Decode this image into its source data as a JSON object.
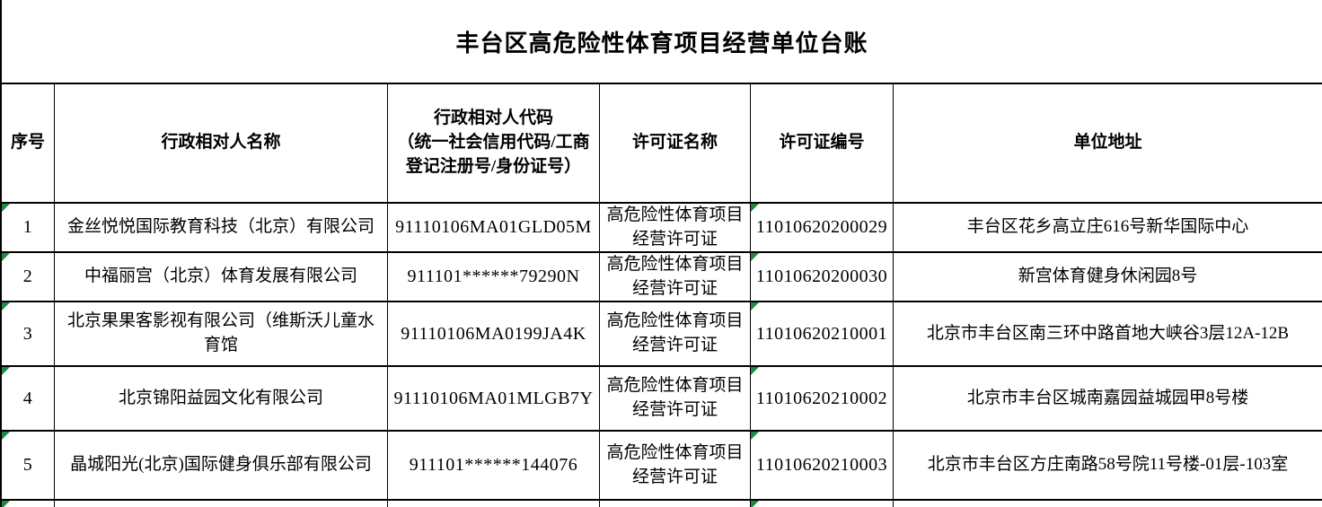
{
  "title": "丰台区高危险性体育项目经营单位台账",
  "colors": {
    "background": "#ffffff",
    "border": "#000000",
    "flag_green": "#1e8a3e",
    "text": "#000000"
  },
  "icons": {
    "cell_flag": "green-corner-triangle (spreadsheet number-stored-as-text indicator)"
  },
  "table": {
    "headers": {
      "index": "序号",
      "name": "行政相对人名称",
      "code": "行政相对人代码\n（统一社会信用代码/工商登记注册号/身份证号）",
      "license_name": "许可证名称",
      "license_no": "许可证编号",
      "address": "单位地址"
    },
    "rows": [
      {
        "index": "1",
        "name": "金丝悦悦国际教育科技（北京）有限公司",
        "code": "91110106MA01GLD05M",
        "license_name": "高危险性体育项目\n经营许可证",
        "license_no": "11010620200029",
        "address": "丰台区花乡高立庄616号新华国际中心"
      },
      {
        "index": "2",
        "name": "中福丽宫（北京）体育发展有限公司",
        "code": "911101******79290N",
        "license_name": "高危险性体育项目\n经营许可证",
        "license_no": "11010620200030",
        "address": "新宫体育健身休闲园8号"
      },
      {
        "index": "3",
        "name": "北京果果客影视有限公司（维斯沃儿童水\n育馆",
        "code": "91110106MA0199JA4K",
        "license_name": "高危险性体育项目\n经营许可证",
        "license_no": "11010620210001",
        "address": "北京市丰台区南三环中路首地大峡谷3层12A-12B"
      },
      {
        "index": "4",
        "name": "北京锦阳益园文化有限公司",
        "code": "91110106MA01MLGB7Y",
        "license_name": "高危险性体育项目\n经营许可证",
        "license_no": "11010620210002",
        "address": "北京市丰台区城南嘉园益城园甲8号楼"
      },
      {
        "index": "5",
        "name": "晶城阳光(北京)国际健身俱乐部有限公司",
        "code": "911101******144076",
        "license_name": "高危险性体育项目\n经营许可证",
        "license_no": "11010620210003",
        "address": "北京市丰台区方庄南路58号院11号楼-01层-103室"
      }
    ]
  }
}
